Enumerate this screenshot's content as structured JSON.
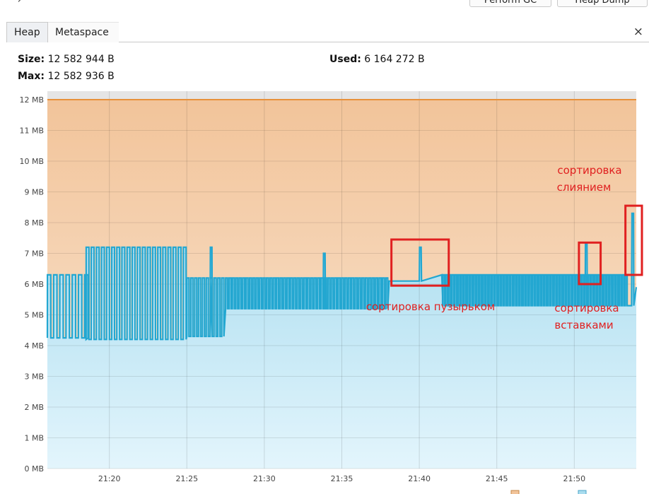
{
  "toolbar": {
    "arrow": "↗",
    "gc_label": "Perform GC",
    "heap_dump_label": "Heap Dump"
  },
  "tabs": [
    {
      "label": "Heap",
      "active": true
    },
    {
      "label": "Metaspace",
      "active": false
    }
  ],
  "close_glyph": "×",
  "stats": {
    "size_label": "Size:",
    "size_value": "12 582 944 B",
    "max_label": "Max:",
    "max_value": "12 582 936 B",
    "used_label": "Used:",
    "used_value": "6 164 272 B"
  },
  "colors": {
    "size_line": "#e8913a",
    "used_line": "#23a7d1",
    "annotation": "#e02020"
  },
  "chart_data": {
    "type": "area",
    "x_ticks": [
      "21:20",
      "21:25",
      "21:30",
      "21:35",
      "21:40",
      "21:45",
      "21:50"
    ],
    "y_ticks": [
      "0 MB",
      "1 MB",
      "2 MB",
      "3 MB",
      "4 MB",
      "5 MB",
      "6 MB",
      "7 MB",
      "8 MB",
      "9 MB",
      "10 MB",
      "11 MB",
      "12 MB"
    ],
    "x_range_minutes": [
      "21:16",
      "21:54"
    ],
    "ylim_mb": [
      0,
      12.3
    ],
    "grid": true,
    "series": [
      {
        "key": "size",
        "values_mb": [
          12.0,
          12.0
        ]
      },
      {
        "key": "used",
        "segments": [
          {
            "x0": "21:16",
            "x1": "21:18.5",
            "type": "saw",
            "low": 4.25,
            "high": 6.3,
            "period": 0.4
          },
          {
            "x0": "21:18.5",
            "x1": "21:25",
            "type": "saw",
            "low": 4.2,
            "high": 7.2,
            "period": 0.33
          },
          {
            "x0": "21:25",
            "x1": "21:27.5",
            "type": "saw",
            "low": 4.3,
            "high": 6.2,
            "period": 0.25
          },
          {
            "x0": "21:27.5",
            "x1": "21:38",
            "type": "saw",
            "low": 5.2,
            "high": 6.2,
            "period": 0.22
          },
          {
            "x0": "21:38",
            "x1": "21:41.5",
            "type": "plateau",
            "low": 5.6,
            "high": 6.3
          },
          {
            "x0": "21:41.5",
            "x1": "21:53.5",
            "type": "saw",
            "low": 5.3,
            "high": 6.3,
            "period": 0.2
          }
        ],
        "spikes": [
          {
            "x": "21:26.5",
            "value": 7.2
          },
          {
            "x": "21:33.8",
            "value": 7.0
          },
          {
            "x": "21:40",
            "value": 7.2
          },
          {
            "x": "21:50.7",
            "value": 7.3
          },
          {
            "x": "21:53.7",
            "value": 8.3
          }
        ]
      }
    ],
    "annotations": [
      {
        "text": "сортировка пузырьком"
      },
      {
        "text": "сортировка"
      },
      {
        "text": "вставками"
      },
      {
        "text": "сортировка"
      },
      {
        "text": "слиянием"
      }
    ]
  }
}
